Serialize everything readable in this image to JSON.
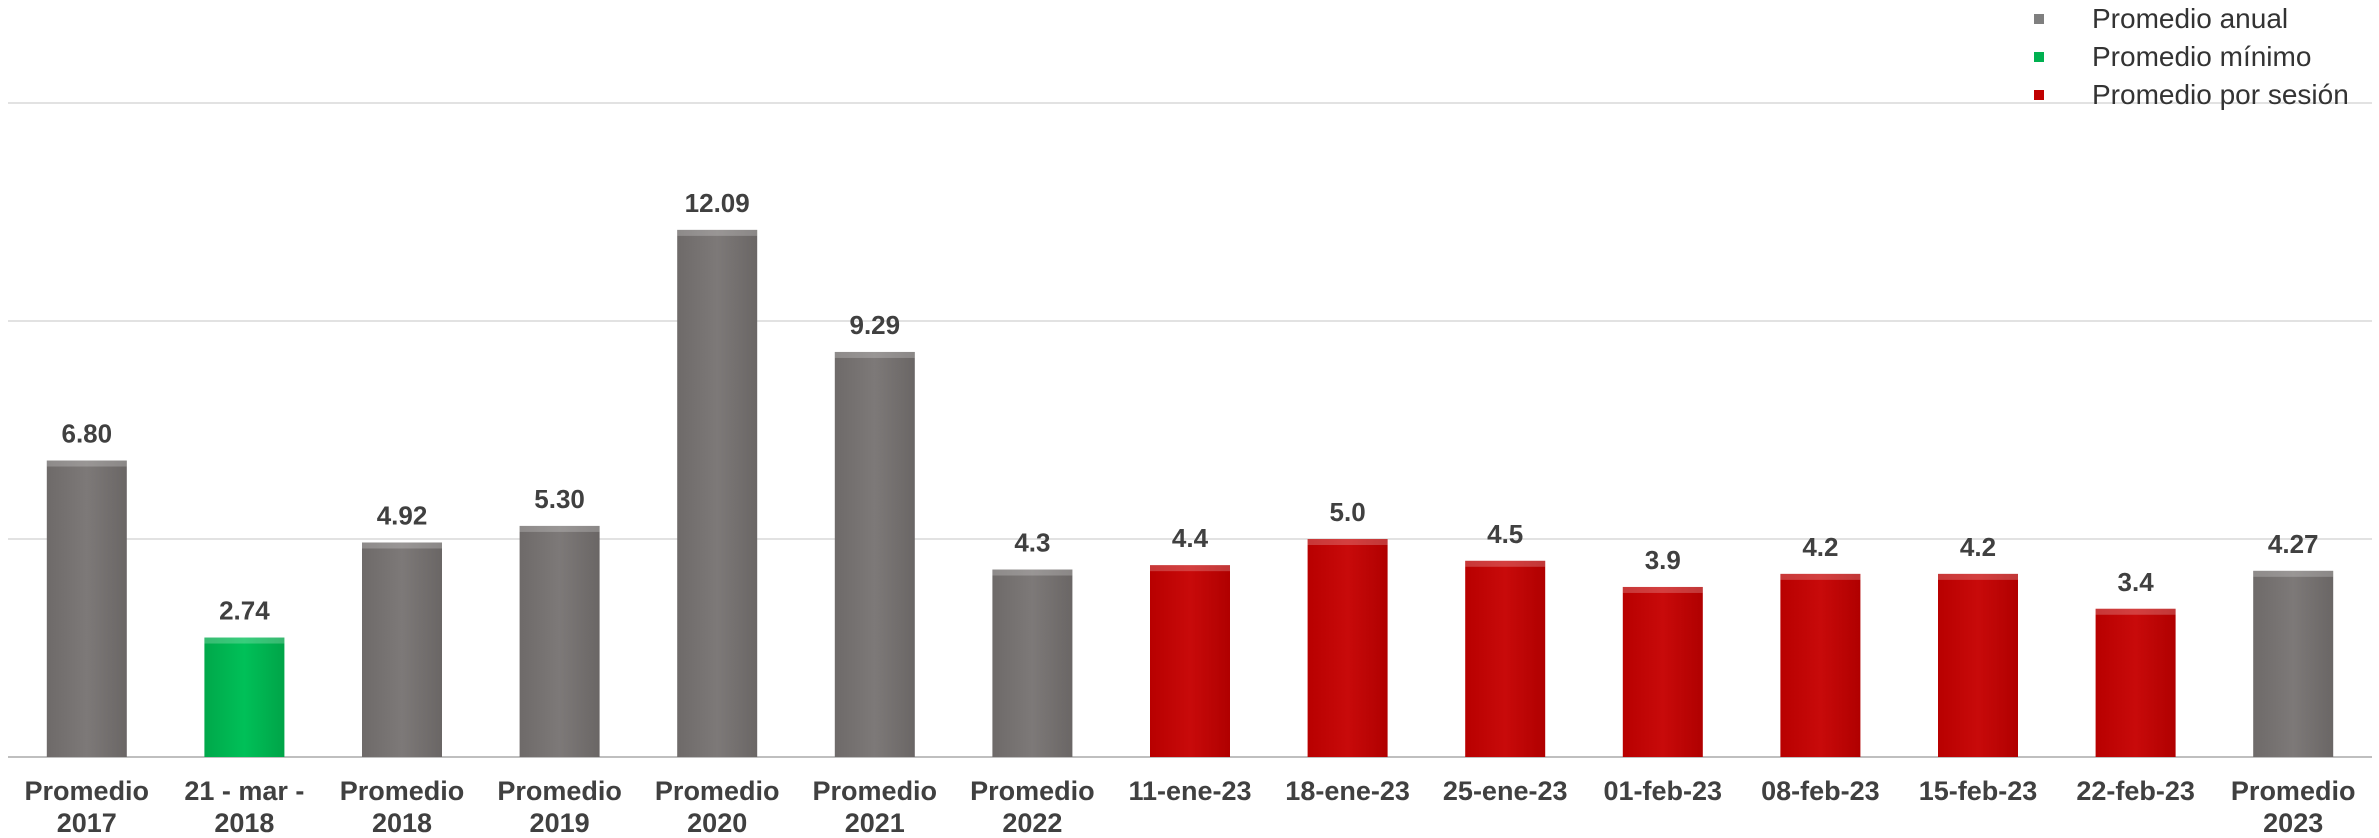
{
  "chart_data": {
    "type": "bar",
    "categories": [
      [
        "Promedio",
        "2017"
      ],
      [
        "21 - mar -",
        "2018"
      ],
      [
        "Promedio",
        "2018"
      ],
      [
        "Promedio",
        "2019"
      ],
      [
        "Promedio",
        "2020"
      ],
      [
        "Promedio",
        "2021"
      ],
      [
        "Promedio",
        "2022"
      ],
      [
        "11-ene-23"
      ],
      [
        "18-ene-23"
      ],
      [
        "25-ene-23"
      ],
      [
        "01-feb-23"
      ],
      [
        "08-feb-23"
      ],
      [
        "15-feb-23"
      ],
      [
        "22-feb-23"
      ],
      [
        "Promedio",
        "2023"
      ]
    ],
    "values": [
      6.8,
      2.74,
      4.92,
      5.3,
      12.09,
      9.29,
      4.3,
      4.4,
      5.0,
      4.5,
      3.9,
      4.2,
      4.2,
      3.4,
      4.27
    ],
    "value_labels": [
      "6.80",
      "2.74",
      "4.92",
      "5.30",
      "12.09",
      "9.29",
      "4.3",
      "4.4",
      "5.0",
      "4.5",
      "3.9",
      "4.2",
      "4.2",
      "3.4",
      "4.27"
    ],
    "bar_groups": [
      "anual",
      "minimo",
      "anual",
      "anual",
      "anual",
      "anual",
      "anual",
      "sesion",
      "sesion",
      "sesion",
      "sesion",
      "sesion",
      "sesion",
      "sesion",
      "anual"
    ],
    "series": [
      {
        "key": "anual",
        "name": "Promedio anual",
        "color": "#7f7f7f"
      },
      {
        "key": "minimo",
        "name": "Promedio mínimo",
        "color": "#00b050"
      },
      {
        "key": "sesion",
        "name": "Promedio por sesión",
        "color": "#c00000"
      }
    ],
    "ylim": [
      0,
      15
    ],
    "gridlines": [
      0,
      5,
      10,
      15
    ],
    "grid": true,
    "legend_position": "top-right",
    "title": "",
    "xlabel": "",
    "ylabel": ""
  }
}
